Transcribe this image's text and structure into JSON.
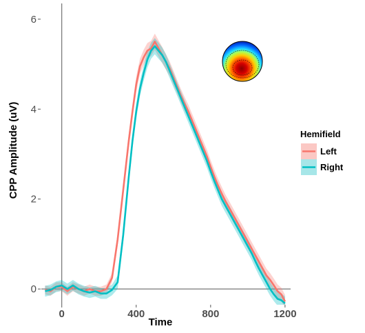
{
  "chart_data": {
    "type": "line",
    "xlabel": "Time",
    "ylabel": "CPP Amplitude (uV)",
    "xlim": [
      -110,
      1230
    ],
    "ylim": [
      -0.35,
      6.35
    ],
    "x_ticks": [
      0,
      400,
      800,
      1200
    ],
    "y_ticks": [
      0,
      2,
      4,
      6
    ],
    "legend": {
      "title": "Hemifield",
      "position": "right",
      "entries": [
        "Left",
        "Right"
      ]
    },
    "grid": false,
    "zero_lines": true,
    "colors": {
      "Left": "#F8766D",
      "Right": "#00BFC4"
    },
    "band_colors": {
      "Left": "#F8766D",
      "Right": "#00BFC4"
    },
    "inset": "scalp topography map",
    "series": [
      {
        "name": "Left",
        "x": [
          -90,
          -60,
          -30,
          0,
          30,
          60,
          90,
          120,
          150,
          180,
          210,
          240,
          270,
          300,
          330,
          360,
          380,
          400,
          420,
          440,
          460,
          480,
          500,
          520,
          540,
          560,
          580,
          600,
          620,
          640,
          660,
          680,
          700,
          720,
          740,
          760,
          780,
          800,
          820,
          840,
          860,
          880,
          900,
          920,
          940,
          960,
          980,
          1000,
          1020,
          1040,
          1060,
          1080,
          1100,
          1120,
          1140,
          1160,
          1180,
          1200
        ],
        "y": [
          -0.02,
          -0.05,
          0.05,
          0.05,
          -0.05,
          0.05,
          0.0,
          -0.05,
          0.0,
          -0.05,
          -0.05,
          0.0,
          0.25,
          1.1,
          2.2,
          3.3,
          3.95,
          4.55,
          4.95,
          5.15,
          5.3,
          5.35,
          5.5,
          5.35,
          5.2,
          5.05,
          4.9,
          4.7,
          4.5,
          4.3,
          4.12,
          3.95,
          3.75,
          3.55,
          3.35,
          3.15,
          2.95,
          2.72,
          2.5,
          2.3,
          2.12,
          1.95,
          1.8,
          1.65,
          1.5,
          1.35,
          1.2,
          1.05,
          0.9,
          0.75,
          0.6,
          0.45,
          0.3,
          0.2,
          0.08,
          -0.05,
          -0.12,
          -0.28
        ],
        "band": [
          0.1,
          0.1,
          0.1,
          0.1,
          0.1,
          0.1,
          0.1,
          0.1,
          0.1,
          0.1,
          0.1,
          0.1,
          0.1,
          0.14,
          0.15,
          0.16,
          0.16,
          0.17,
          0.17,
          0.17,
          0.17,
          0.17,
          0.18,
          0.18,
          0.18,
          0.17,
          0.16,
          0.16,
          0.15,
          0.15,
          0.15,
          0.15,
          0.15,
          0.15,
          0.15,
          0.15,
          0.15,
          0.15,
          0.15,
          0.15,
          0.15,
          0.15,
          0.15,
          0.15,
          0.15,
          0.15,
          0.15,
          0.15,
          0.15,
          0.15,
          0.15,
          0.15,
          0.15,
          0.15,
          0.15,
          0.15,
          0.15,
          0.15
        ]
      },
      {
        "name": "Right",
        "x": [
          -90,
          -60,
          -30,
          0,
          30,
          60,
          90,
          120,
          150,
          180,
          210,
          240,
          270,
          300,
          330,
          360,
          380,
          400,
          420,
          440,
          460,
          480,
          500,
          520,
          540,
          560,
          580,
          600,
          620,
          640,
          660,
          680,
          700,
          720,
          740,
          760,
          780,
          800,
          820,
          840,
          860,
          880,
          900,
          920,
          940,
          960,
          980,
          1000,
          1020,
          1040,
          1060,
          1080,
          1100,
          1120,
          1140,
          1160,
          1180,
          1200
        ],
        "y": [
          -0.05,
          -0.02,
          0.05,
          0.08,
          0.0,
          0.08,
          0.0,
          -0.05,
          -0.08,
          -0.05,
          -0.1,
          -0.1,
          -0.02,
          0.15,
          1.2,
          2.5,
          3.3,
          3.95,
          4.45,
          4.8,
          5.1,
          5.3,
          5.4,
          5.3,
          5.2,
          5.05,
          4.85,
          4.65,
          4.45,
          4.25,
          4.05,
          3.85,
          3.65,
          3.45,
          3.25,
          3.05,
          2.85,
          2.62,
          2.4,
          2.2,
          2.0,
          1.85,
          1.7,
          1.55,
          1.4,
          1.25,
          1.1,
          0.95,
          0.8,
          0.62,
          0.45,
          0.3,
          0.15,
          0.0,
          -0.12,
          -0.22,
          -0.25,
          -0.32
        ],
        "band": [
          0.12,
          0.12,
          0.12,
          0.12,
          0.12,
          0.12,
          0.12,
          0.12,
          0.12,
          0.12,
          0.12,
          0.12,
          0.12,
          0.15,
          0.16,
          0.16,
          0.17,
          0.17,
          0.17,
          0.17,
          0.18,
          0.18,
          0.18,
          0.18,
          0.17,
          0.17,
          0.16,
          0.16,
          0.15,
          0.15,
          0.15,
          0.15,
          0.15,
          0.15,
          0.15,
          0.15,
          0.15,
          0.15,
          0.15,
          0.15,
          0.15,
          0.15,
          0.15,
          0.15,
          0.15,
          0.15,
          0.15,
          0.15,
          0.15,
          0.15,
          0.15,
          0.15,
          0.15,
          0.15,
          0.15,
          0.15,
          0.15,
          0.15
        ]
      }
    ]
  }
}
